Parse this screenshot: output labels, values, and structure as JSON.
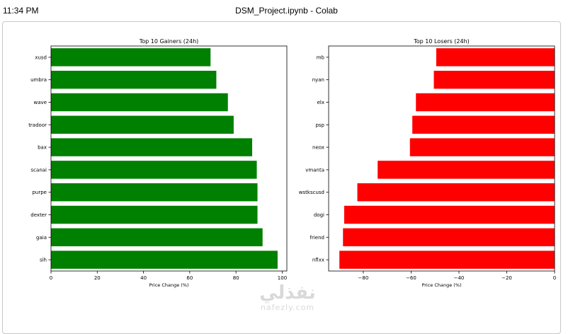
{
  "window": {
    "time": "11:34 PM",
    "title": "DSM_Project.ipynb - Colab"
  },
  "watermark": {
    "arabic": "نفذلي",
    "latin": "nafezly.com"
  },
  "colors": {
    "gainers": "#008000",
    "losers": "#ff0000"
  },
  "chart_data": [
    {
      "type": "bar",
      "orientation": "horizontal",
      "title": "Top 10 Gainers (24h)",
      "xlabel": "Price Change (%)",
      "ylabel": "",
      "categories": [
        "xusd",
        "umbra",
        "wave",
        "tradoor",
        "bax",
        "scanai",
        "purpe",
        "dexter",
        "gaia",
        "sih"
      ],
      "values": [
        69,
        71.5,
        76.5,
        79,
        87,
        89,
        89.3,
        89.3,
        91.5,
        98
      ],
      "xlim": [
        0,
        102
      ],
      "xticks": [
        "0",
        "20",
        "40",
        "60",
        "80",
        "100"
      ],
      "xtick_values": [
        0,
        20,
        40,
        60,
        80,
        100
      ],
      "grid": false
    },
    {
      "type": "bar",
      "orientation": "horizontal",
      "title": "Top 10 Losers (24h)",
      "xlabel": "Price Change (%)",
      "ylabel": "",
      "categories": [
        "mb",
        "nyan",
        "elx",
        "psp",
        "neox",
        "vmanta",
        "wstkscusd",
        "dogi",
        "friend",
        "nflxx"
      ],
      "values": [
        -49.5,
        -50.5,
        -58,
        -59.5,
        -60.5,
        -74,
        -82.5,
        -88,
        -88.5,
        -90
      ],
      "xlim": [
        -94.5,
        0
      ],
      "xticks": [
        "−80",
        "−60",
        "−40",
        "−20",
        "0"
      ],
      "xtick_values": [
        -80,
        -60,
        -40,
        -20,
        0
      ],
      "grid": false
    }
  ]
}
